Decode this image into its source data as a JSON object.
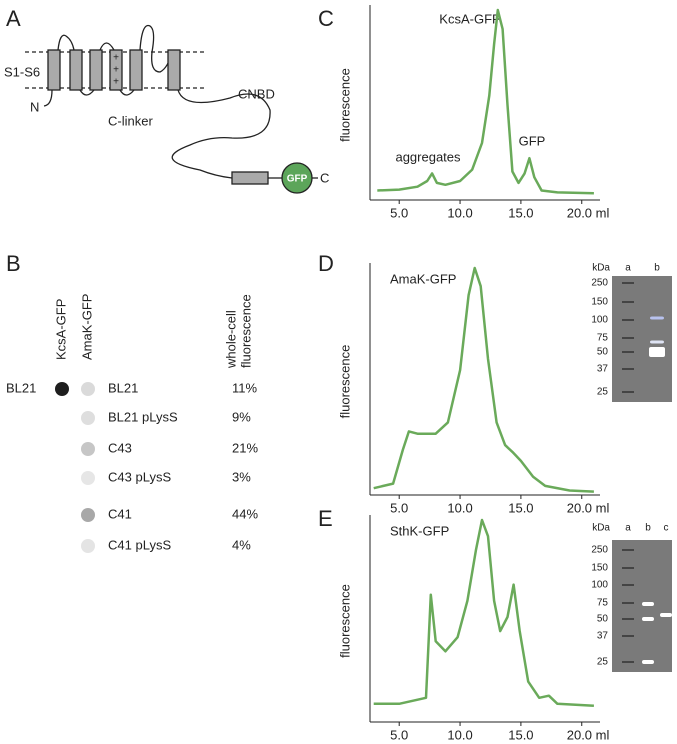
{
  "panel_labels": [
    "A",
    "B",
    "C",
    "D",
    "E"
  ],
  "diagram": {
    "segments": "S1-S6",
    "n_term": "N",
    "linker": "C-linker",
    "domain": "CNBD",
    "tag": "GFP",
    "c_term": "C",
    "charge": "+"
  },
  "blot": {
    "columns": [
      "KcsA-GFP",
      "AmaK-GFP"
    ],
    "value_header": [
      "whole-cell",
      "fluorescence"
    ],
    "reference": {
      "strain": "BL21",
      "color": "#1e1e1e"
    },
    "rows": [
      {
        "strain": "BL21",
        "fluorescence": "11%",
        "color": "#dadada"
      },
      {
        "strain": "BL21 pLysS",
        "fluorescence": "9%",
        "color": "#dedede"
      },
      {
        "strain": "C43",
        "fluorescence": "21%",
        "color": "#c6c6c6"
      },
      {
        "strain": "C43 pLysS",
        "fluorescence": "3%",
        "color": "#e6e6e6"
      },
      {
        "strain": "C41",
        "fluorescence": "44%",
        "color": "#a8a8a8"
      },
      {
        "strain": "C41 pLysS",
        "fluorescence": "4%",
        "color": "#e4e4e4"
      }
    ]
  },
  "gels": [
    {
      "unit": "kDa",
      "lanes": [
        "a",
        "b"
      ],
      "markers": [
        "250",
        "150",
        "100",
        "75",
        "50",
        "37",
        "25"
      ]
    },
    {
      "unit": "kDa",
      "lanes": [
        "a",
        "b",
        "c"
      ],
      "markers": [
        "250",
        "150",
        "100",
        "75",
        "50",
        "37",
        "25"
      ]
    }
  ],
  "chart_data": [
    {
      "type": "line",
      "y_label": "fluorescence",
      "annotations": [
        "aggregates",
        "KcsA-GFP",
        "GFP"
      ],
      "color": "#6aaa5a",
      "x": [
        3.2,
        5,
        6.5,
        7.3,
        7.7,
        8.1,
        8.8,
        10,
        11,
        11.8,
        12.4,
        12.8,
        13.1,
        13.5,
        13.9,
        14.3,
        14.8,
        15.3,
        15.7,
        16.1,
        16.7,
        18,
        21
      ],
      "values": [
        5,
        5.5,
        7,
        10,
        14,
        9,
        8,
        10,
        16,
        30,
        55,
        82,
        100,
        90,
        50,
        15,
        9,
        14,
        22,
        12,
        5,
        4,
        3.5
      ],
      "xlim": [
        2.6,
        21.5
      ],
      "ylim": [
        0,
        100
      ],
      "xticks": [
        {
          "value": 5,
          "label": "5.0"
        },
        {
          "value": 10,
          "label": "10.0"
        },
        {
          "value": 15,
          "label": "15.0"
        },
        {
          "value": 20,
          "label": "20.0 ml"
        }
      ]
    },
    {
      "type": "line",
      "y_label": "fluorescence",
      "annotations": [
        "AmaK-GFP"
      ],
      "color": "#6aaa5a",
      "x": [
        2.9,
        4.5,
        5.3,
        5.8,
        6.5,
        8,
        9,
        10,
        10.7,
        11.2,
        11.7,
        12.3,
        13,
        13.7,
        14.3,
        15,
        16,
        17,
        19,
        21
      ],
      "values": [
        3,
        5,
        20,
        28,
        27,
        27,
        32,
        55,
        88,
        100,
        92,
        60,
        32,
        22,
        19,
        15,
        8,
        4,
        2,
        1.5
      ],
      "xlim": [
        2.6,
        21.5
      ],
      "ylim": [
        0,
        100
      ],
      "xticks": [
        {
          "value": 5,
          "label": "5.0"
        },
        {
          "value": 10,
          "label": "10.0"
        },
        {
          "value": 15,
          "label": "15.0"
        },
        {
          "value": 20,
          "label": "20.0 ml"
        }
      ]
    },
    {
      "type": "line",
      "y_label": "fluorescence",
      "annotations": [
        "SthK-GFP"
      ],
      "color": "#6aaa5a",
      "x": [
        2.9,
        5,
        7.2,
        7.6,
        8,
        8.8,
        9.8,
        10.6,
        11.3,
        11.8,
        12.3,
        12.8,
        13.3,
        13.9,
        14.4,
        14.9,
        15.6,
        16.5,
        17.3,
        18,
        21
      ],
      "values": [
        9,
        9,
        12,
        63,
        40,
        35,
        42,
        60,
        85,
        100,
        92,
        60,
        45,
        52,
        68,
        45,
        20,
        12,
        13,
        9,
        8
      ],
      "xlim": [
        2.6,
        21.5
      ],
      "ylim": [
        0,
        100
      ],
      "xticks": [
        {
          "value": 5,
          "label": "5.0"
        },
        {
          "value": 10,
          "label": "10.0"
        },
        {
          "value": 15,
          "label": "15.0"
        },
        {
          "value": 20,
          "label": "20.0 ml"
        }
      ]
    }
  ]
}
